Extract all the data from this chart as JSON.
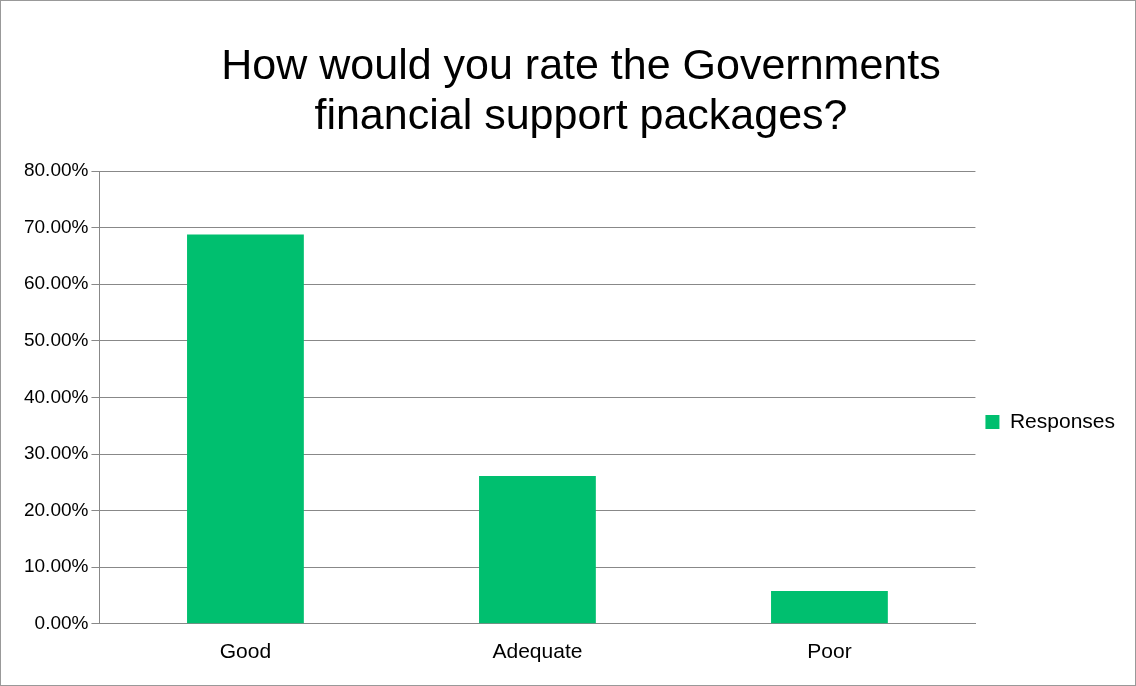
{
  "chart_data": {
    "type": "bar",
    "title": "How would you rate the Governments financial support packages?",
    "categories": [
      "Good",
      "Adequate",
      "Poor"
    ],
    "series": [
      {
        "name": "Responses",
        "color": "#00bf6f",
        "values": [
          68.8,
          26.1,
          5.8
        ]
      }
    ],
    "ylim": [
      0,
      80
    ],
    "yticks": [
      {
        "value": 0,
        "label": "0.00%"
      },
      {
        "value": 10,
        "label": "10.00%"
      },
      {
        "value": 20,
        "label": "20.00%"
      },
      {
        "value": 30,
        "label": "30.00%"
      },
      {
        "value": 40,
        "label": "40.00%"
      },
      {
        "value": 50,
        "label": "50.00%"
      },
      {
        "value": 60,
        "label": "60.00%"
      },
      {
        "value": 70,
        "label": "70.00%"
      },
      {
        "value": 80,
        "label": "80.00%"
      }
    ],
    "grid": "y",
    "legend": "right"
  }
}
